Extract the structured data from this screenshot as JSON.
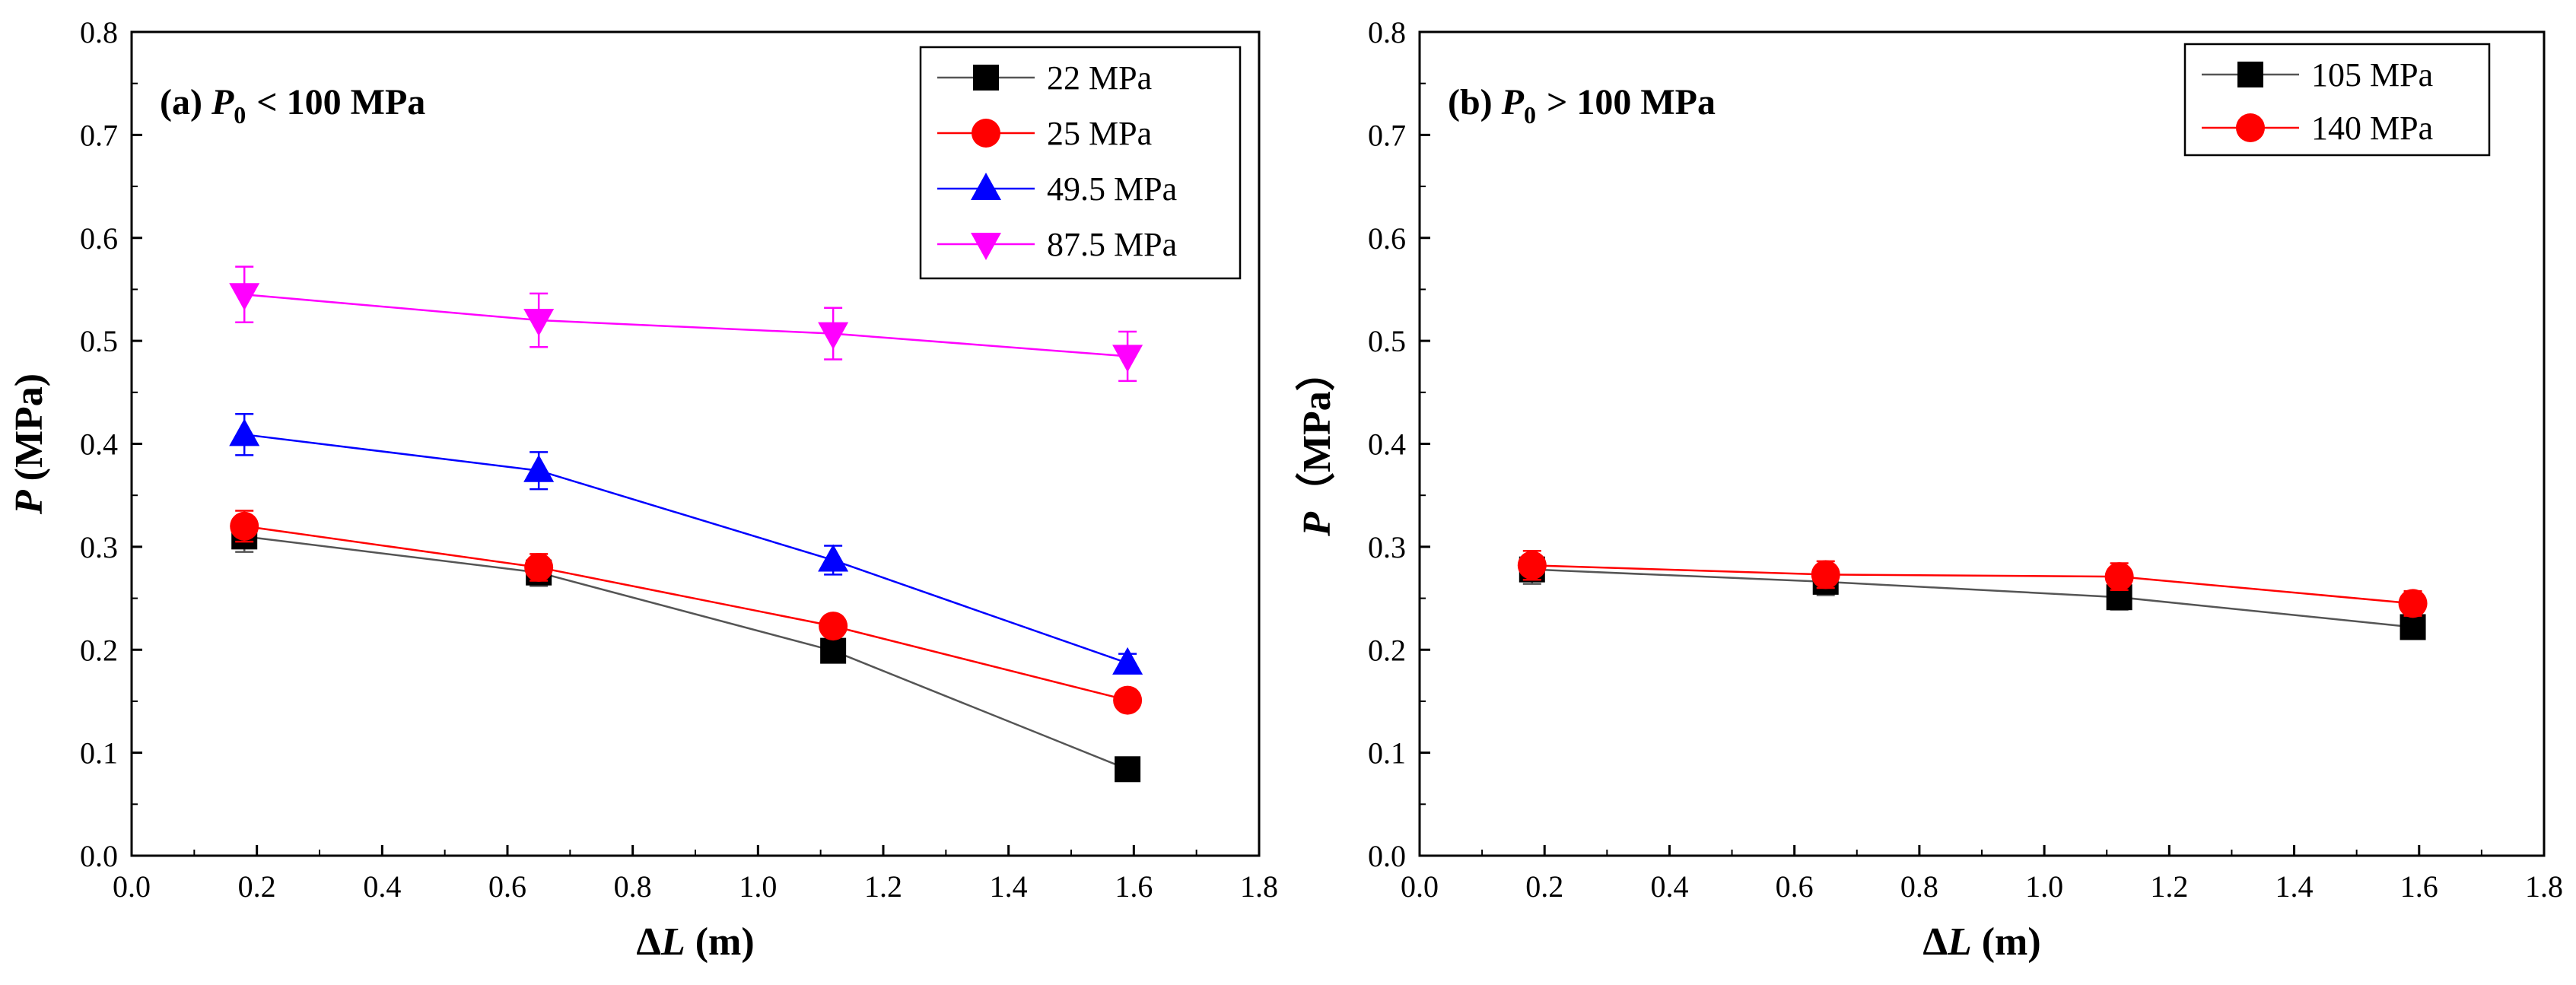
{
  "chart_data": [
    {
      "type": "line",
      "panel_label": "(a)",
      "panel_symbol": "P",
      "panel_sub": "0",
      "panel_condition": "< 100 MPa",
      "xlabel_delta": "Δ",
      "xlabel_var": "L",
      "xlabel_unit": "(m)",
      "ylabel_var": "P",
      "ylabel_unit": "(MPa)",
      "xlim": [
        0.0,
        1.8
      ],
      "ylim": [
        0.0,
        0.8
      ],
      "xticks": [
        "0.0",
        "0.2",
        "0.4",
        "0.6",
        "0.8",
        "1.0",
        "1.2",
        "1.4",
        "1.6",
        "1.8"
      ],
      "yticks": [
        "0.0",
        "0.1",
        "0.2",
        "0.3",
        "0.4",
        "0.5",
        "0.6",
        "0.7",
        "0.8"
      ],
      "legend_position": "top-right",
      "x": [
        0.18,
        0.65,
        1.12,
        1.59
      ],
      "series": [
        {
          "name": "22 MPa",
          "color": "#000000",
          "line_color": "#555555",
          "marker": "square",
          "values": [
            0.31,
            0.275,
            0.199,
            0.084
          ],
          "errors": [
            0.015,
            0.013,
            0.008,
            0.005
          ]
        },
        {
          "name": "25 MPa",
          "color": "#ff0000",
          "line_color": "#ff0000",
          "marker": "circle",
          "values": [
            0.32,
            0.28,
            0.223,
            0.151
          ],
          "errors": [
            0.015,
            0.013,
            0.009,
            0.006
          ]
        },
        {
          "name": "49.5 MPa",
          "color": "#0000ff",
          "line_color": "#0000ff",
          "marker": "triangle-up",
          "values": [
            0.409,
            0.374,
            0.287,
            0.187
          ],
          "errors": [
            0.02,
            0.018,
            0.014,
            0.009
          ]
        },
        {
          "name": "87.5 MPa",
          "color": "#ff00ff",
          "line_color": "#ff00ff",
          "marker": "triangle-down",
          "values": [
            0.545,
            0.52,
            0.507,
            0.485
          ],
          "errors": [
            0.027,
            0.026,
            0.025,
            0.024
          ]
        }
      ]
    },
    {
      "type": "line",
      "panel_label": "(b)",
      "panel_symbol": "P",
      "panel_sub": "0",
      "panel_condition": "> 100 MPa",
      "xlabel_delta": "Δ",
      "xlabel_var": "L",
      "xlabel_unit": "(m)",
      "ylabel_var": "P",
      "ylabel_unit": "（MPa）",
      "xlim": [
        0.0,
        1.8
      ],
      "ylim": [
        0.0,
        0.8
      ],
      "xticks": [
        "0.0",
        "0.2",
        "0.4",
        "0.6",
        "0.8",
        "1.0",
        "1.2",
        "1.4",
        "1.6",
        "1.8"
      ],
      "yticks": [
        "0.0",
        "0.1",
        "0.2",
        "0.3",
        "0.4",
        "0.5",
        "0.6",
        "0.7",
        "0.8"
      ],
      "legend_position": "top-right",
      "x": [
        0.18,
        0.65,
        1.12,
        1.59
      ],
      "series": [
        {
          "name": "105 MPa",
          "color": "#000000",
          "line_color": "#555555",
          "marker": "square",
          "values": [
            0.278,
            0.266,
            0.251,
            0.222
          ],
          "errors": [
            0.014,
            0.013,
            0.012,
            0.011
          ]
        },
        {
          "name": "140 MPa",
          "color": "#ff0000",
          "line_color": "#ff0000",
          "marker": "circle",
          "values": [
            0.282,
            0.273,
            0.271,
            0.245
          ],
          "errors": [
            0.014,
            0.013,
            0.013,
            0.012
          ]
        }
      ]
    }
  ]
}
